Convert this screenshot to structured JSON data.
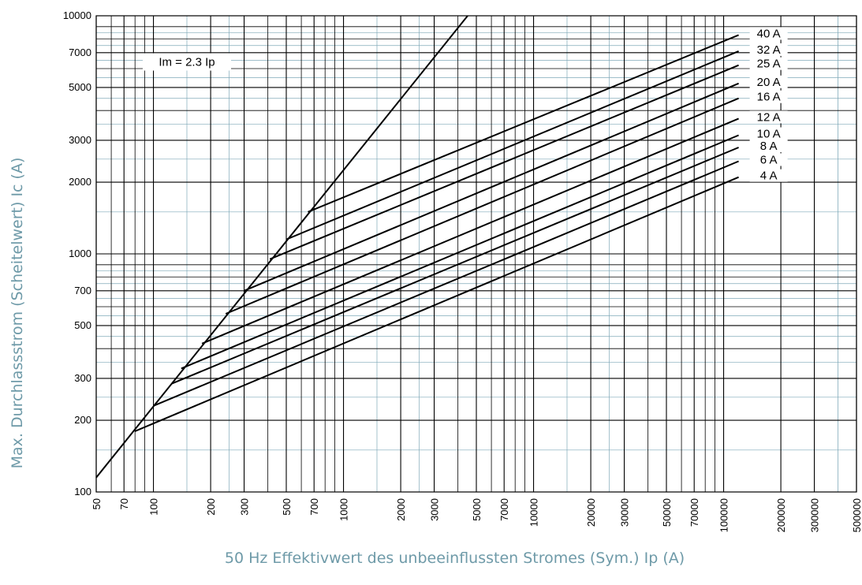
{
  "chart_data": {
    "type": "line",
    "xlabel": "50 Hz Effektivwert des unbeeinflussten Stromes (Sym.) Ip (A)",
    "ylabel": "Max. Durchlassstrom (Scheitelwert) Ic (A)",
    "xscale": "log",
    "yscale": "log",
    "xlim": [
      50,
      500000
    ],
    "ylim": [
      100,
      10000
    ],
    "grid": true,
    "x_ticks": [
      50,
      70,
      100,
      200,
      300,
      500,
      700,
      1000,
      2000,
      3000,
      5000,
      7000,
      10000,
      20000,
      30000,
      50000,
      70000,
      100000,
      200000,
      300000,
      500000
    ],
    "y_ticks": [
      100,
      200,
      300,
      500,
      700,
      1000,
      2000,
      3000,
      5000,
      7000,
      10000
    ],
    "annotations": [
      {
        "text": "Im = 2.3 Ip",
        "x": 150,
        "y": 6400
      }
    ],
    "series": [
      {
        "name": "Im = 2.3 Ip",
        "x": [
          50,
          4500
        ],
        "y": [
          115,
          10000
        ]
      },
      {
        "name": "40 A",
        "x": [
          650,
          120000
        ],
        "y": [
          1500,
          8300
        ]
      },
      {
        "name": "32 A",
        "x": [
          500,
          120000
        ],
        "y": [
          1150,
          7100
        ]
      },
      {
        "name": "25 A",
        "x": [
          410,
          120000
        ],
        "y": [
          950,
          6200
        ]
      },
      {
        "name": "20 A",
        "x": [
          300,
          120000
        ],
        "y": [
          700,
          5200
        ]
      },
      {
        "name": "16 A",
        "x": [
          240,
          120000
        ],
        "y": [
          560,
          4500
        ]
      },
      {
        "name": "12 A",
        "x": [
          180,
          120000
        ],
        "y": [
          420,
          3700
        ]
      },
      {
        "name": "10 A",
        "x": [
          140,
          120000
        ],
        "y": [
          330,
          3150
        ]
      },
      {
        "name": "8 A",
        "x": [
          125,
          120000
        ],
        "y": [
          285,
          2800
        ]
      },
      {
        "name": "6 A",
        "x": [
          100,
          120000
        ],
        "y": [
          230,
          2450
        ]
      },
      {
        "name": "4 A",
        "x": [
          80,
          120000
        ],
        "y": [
          180,
          2100
        ]
      }
    ]
  }
}
